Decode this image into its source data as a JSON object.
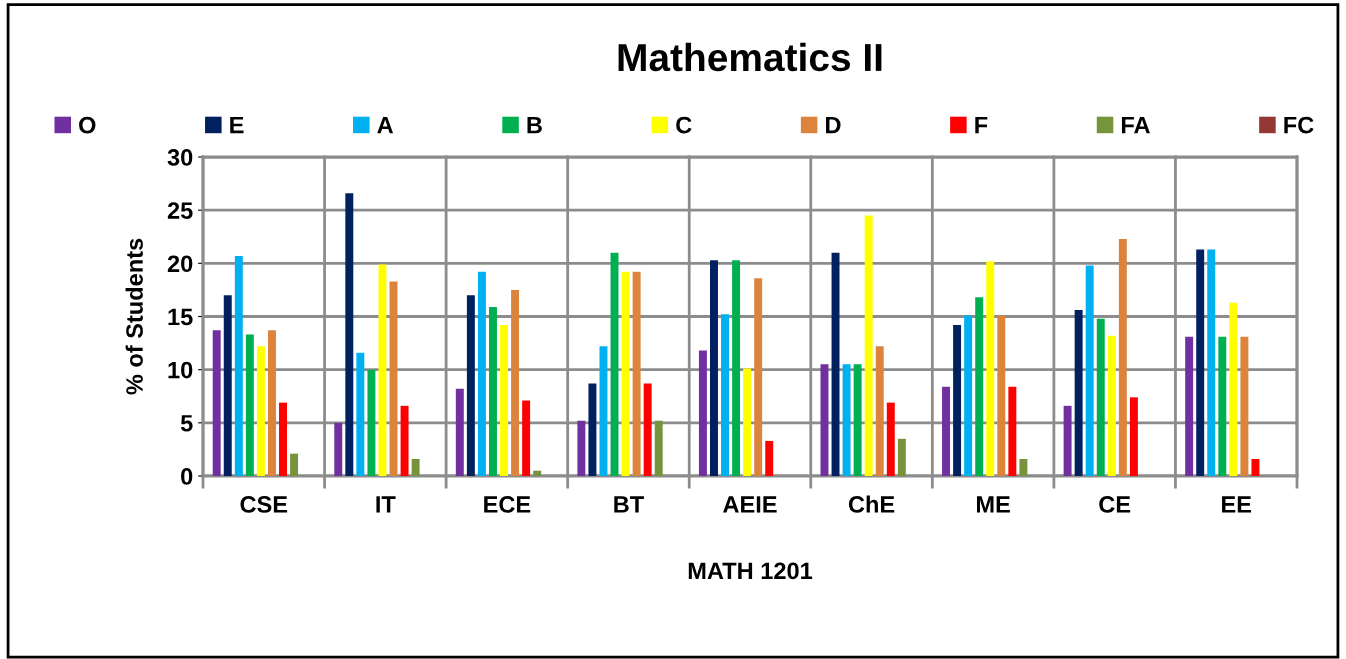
{
  "chart_data": {
    "type": "bar",
    "title": "Mathematics II",
    "xlabel": "MATH 1201",
    "ylabel": "% of Students",
    "categories": [
      "CSE",
      "IT",
      "ECE",
      "BT",
      "AEIE",
      "ChE",
      "ME",
      "CE",
      "EE"
    ],
    "series": [
      {
        "name": "O",
        "color": "#7030a0",
        "values": [
          13.7,
          5.0,
          8.2,
          5.2,
          11.8,
          10.5,
          8.4,
          6.6,
          13.1
        ]
      },
      {
        "name": "E",
        "color": "#002060",
        "values": [
          17.0,
          26.6,
          17.0,
          8.7,
          20.3,
          21.0,
          14.2,
          15.6,
          21.3
        ]
      },
      {
        "name": "A",
        "color": "#00b0f0",
        "values": [
          20.7,
          11.6,
          19.2,
          12.2,
          15.2,
          10.5,
          15.1,
          19.8,
          21.3
        ]
      },
      {
        "name": "B",
        "color": "#00b050",
        "values": [
          13.3,
          10.0,
          15.9,
          21.0,
          20.3,
          10.5,
          16.8,
          14.8,
          13.1
        ]
      },
      {
        "name": "C",
        "color": "#ffff00",
        "values": [
          12.2,
          19.9,
          14.2,
          19.2,
          10.1,
          24.5,
          20.2,
          13.2,
          16.3
        ]
      },
      {
        "name": "D",
        "color": "#dd843c",
        "values": [
          13.7,
          18.3,
          17.5,
          19.2,
          18.6,
          12.2,
          15.1,
          22.3,
          13.1
        ]
      },
      {
        "name": "F",
        "color": "#ff0000",
        "values": [
          6.9,
          6.6,
          7.1,
          8.7,
          3.3,
          6.9,
          8.4,
          7.4,
          1.6
        ]
      },
      {
        "name": "FA",
        "color": "#77933c",
        "values": [
          2.1,
          1.6,
          0.5,
          5.2,
          0,
          3.5,
          1.6,
          0,
          0
        ]
      },
      {
        "name": "FC",
        "color": "#953735",
        "values": [
          0,
          0,
          0,
          0,
          0,
          0,
          0,
          0,
          0
        ]
      }
    ],
    "ylim": [
      0,
      30
    ],
    "yticks": [
      0,
      5,
      10,
      15,
      20,
      25,
      30
    ],
    "grid": true,
    "legend": "top"
  }
}
